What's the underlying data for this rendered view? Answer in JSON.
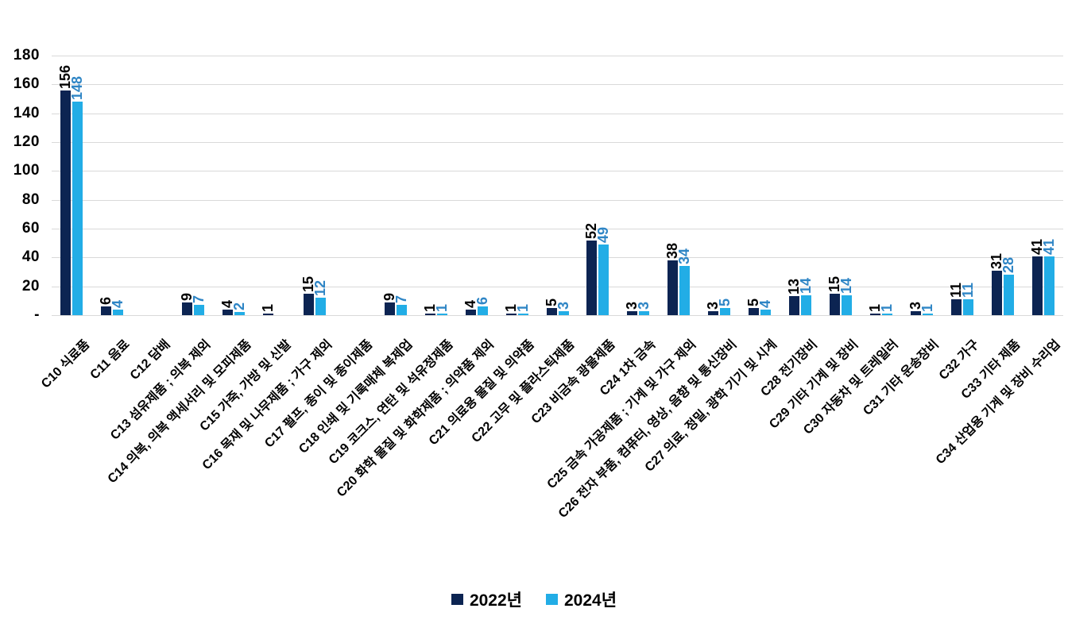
{
  "chart_data": {
    "type": "bar",
    "title": "",
    "categories": [
      "C10 식료품",
      "C11 음료",
      "C12 담배",
      "C13 섬유제품 ; 의복 제외",
      "C14 의복, 의복 액세서리 및 모피제품",
      "C15 가죽, 가방 및 신발",
      "C16 목재 및 나무제품 ; 가구 제외",
      "C17 펄프, 종이 및 종이제품",
      "C18 인쇄 및 기록매체 복제업",
      "C19 코크스, 연탄 및 석유정제품",
      "C20 화학 물질 및 화학제품 ; 의약품 제외",
      "C21 의료용 물질 및 의약품",
      "C22 고무 및 플라스틱제품",
      "C23 비금속 광물제품",
      "C24 1차 금속",
      "C25 금속 가공제품 ; 기계 및 가구 제외",
      "C26 전자 부품, 컴퓨터, 영상, 음향 및 통신장비",
      "C27 의료, 정밀, 광학 기기 및 시계",
      "C28 전기장비",
      "C29 기타 기계 및 장비",
      "C30 자동차 및 트레일러",
      "C31 기타 운송장비",
      "C32 가구",
      "C33 기타 제품",
      "C34 산업용 기계 및 장비 수리업"
    ],
    "series": [
      {
        "name": "2022년",
        "color": "#0c2452",
        "label_color": "#000000",
        "values": [
          156,
          6,
          null,
          9,
          4,
          1,
          15,
          null,
          9,
          1,
          4,
          1,
          5,
          52,
          3,
          38,
          3,
          5,
          13,
          15,
          1,
          3,
          11,
          31,
          41
        ]
      },
      {
        "name": "2024년",
        "color": "#22ade6",
        "label_color": "#2e85c5",
        "values": [
          148,
          4,
          null,
          7,
          2,
          null,
          12,
          null,
          7,
          1,
          6,
          1,
          3,
          49,
          3,
          34,
          5,
          4,
          14,
          14,
          1,
          1,
          11,
          28,
          41
        ]
      }
    ],
    "ylim": [
      0,
      180
    ],
    "ytick_labels": [
      "-",
      "20",
      "40",
      "60",
      "80",
      "100",
      "120",
      "140",
      "160",
      "180"
    ],
    "grid": true,
    "legend_position": "bottom"
  },
  "colors": {
    "background": "#ffffff",
    "gridline": "#d9d9d9",
    "axis_text": "#000000"
  }
}
